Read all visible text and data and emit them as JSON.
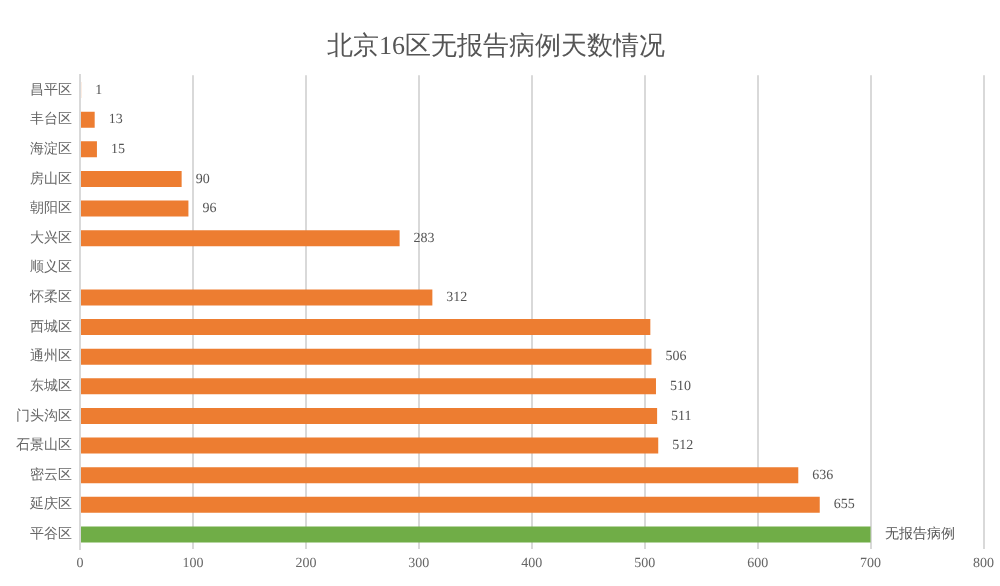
{
  "chart_data": {
    "type": "bar",
    "orientation": "horizontal",
    "title": "北京16区无报告病例天数情况",
    "categories": [
      "昌平区",
      "丰台区",
      "海淀区",
      "房山区",
      "朝阳区",
      "大兴区",
      "顺义区",
      "怀柔区",
      "西城区",
      "通州区",
      "东城区",
      "门头沟区",
      "石景山区",
      "密云区",
      "延庆区",
      "平谷区"
    ],
    "values": [
      1,
      13,
      15,
      90,
      96,
      283,
      null,
      312,
      505,
      506,
      510,
      511,
      512,
      636,
      655,
      700
    ],
    "colors": [
      "#ed7d31",
      "#ed7d31",
      "#ed7d31",
      "#ed7d31",
      "#ed7d31",
      "#ed7d31",
      "#ed7d31",
      "#ed7d31",
      "#ed7d31",
      "#ed7d31",
      "#ed7d31",
      "#ed7d31",
      "#ed7d31",
      "#ed7d31",
      "#ed7d31",
      "#70ad47"
    ],
    "value_labels": [
      "1",
      "13",
      "15",
      "90",
      "96",
      "283",
      null,
      "312",
      null,
      "506",
      "510",
      "511",
      "512",
      "636",
      "655",
      "无报告病例"
    ],
    "xlim": [
      0,
      800
    ],
    "xticks": [
      0,
      100,
      200,
      300,
      400,
      500,
      600,
      700,
      800
    ],
    "grid": "x",
    "legend": false
  }
}
